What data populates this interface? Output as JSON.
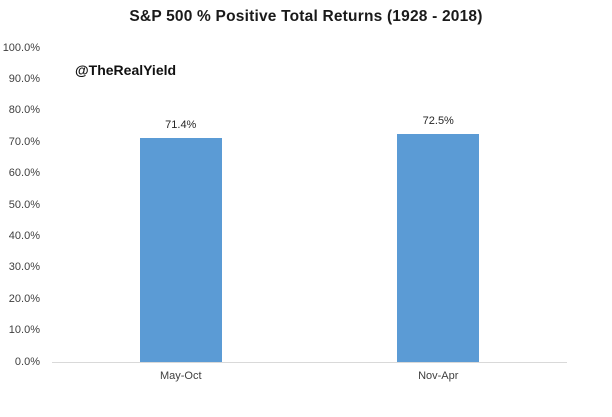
{
  "chart": {
    "watermark": "@TheRealYield"
  },
  "chart_data": {
    "type": "bar",
    "title": "S&P 500 % Positive Total Returns (1928 - 2018)",
    "categories": [
      "May-Oct",
      "Nov-Apr"
    ],
    "values": [
      71.4,
      72.5
    ],
    "data_labels": [
      "71.4%",
      "72.5%"
    ],
    "xlabel": "",
    "ylabel": "",
    "ylim": [
      0,
      100
    ],
    "yticks": [
      "100.0%",
      "90.0%",
      "80.0%",
      "70.0%",
      "60.0%",
      "50.0%",
      "40.0%",
      "30.0%",
      "20.0%",
      "10.0%",
      "0.0%"
    ],
    "ytick_values": [
      100,
      90,
      80,
      70,
      60,
      50,
      40,
      30,
      20,
      10,
      0
    ],
    "grid": false,
    "legend_position": "none",
    "annotation": "@TheRealYield",
    "colors": {
      "bar": "#5B9BD5",
      "axis_line": "#D9D9D9",
      "title_text": "#1a1a1a",
      "tick_text": "#404040",
      "data_label_text": "#262626"
    }
  }
}
